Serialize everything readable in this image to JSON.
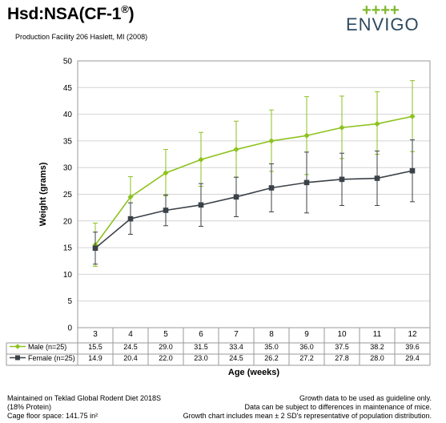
{
  "header": {
    "title_main": "Hsd:NSA(CF-1",
    "title_reg": "®",
    "title_end": ")",
    "subtitle": "Production Facility 206 Haslett, MI (2008)",
    "logo_plus": "++++",
    "logo_text": "ENVIGO"
  },
  "chart_data": {
    "type": "line",
    "title": "",
    "xlabel": "Age (weeks)",
    "ylabel": "Weight (grams)",
    "categories": [
      "3",
      "4",
      "5",
      "6",
      "7",
      "8",
      "9",
      "10",
      "11",
      "12"
    ],
    "ylim": [
      0,
      50
    ],
    "yticks": [
      0,
      5,
      10,
      15,
      20,
      25,
      30,
      35,
      40,
      45,
      50
    ],
    "grid": true,
    "legend": "table-below",
    "series": [
      {
        "name": "Male (n=25)",
        "color": "#8dc21f",
        "marker": "diamond",
        "values": [
          15.5,
          24.5,
          29.0,
          31.5,
          33.4,
          35.0,
          36.0,
          37.5,
          38.2,
          39.6
        ],
        "labels": [
          "15.5",
          "24.5",
          "29.0",
          "31.5",
          "33.4",
          "35.0",
          "36.0",
          "37.5",
          "38.2",
          "39.6"
        ],
        "err_low": [
          11.5,
          20.7,
          24.7,
          26.5,
          28.2,
          29.3,
          28.7,
          31.7,
          32.5,
          33.0
        ],
        "err_high": [
          19.6,
          28.3,
          33.4,
          36.6,
          38.7,
          40.8,
          43.3,
          43.4,
          44.2,
          46.3
        ]
      },
      {
        "name": "Female (n=25)",
        "color": "#3b4148",
        "marker": "square",
        "values": [
          14.9,
          20.4,
          22.0,
          23.0,
          24.5,
          26.2,
          27.2,
          27.8,
          28.0,
          29.4
        ],
        "labels": [
          "14.9",
          "20.4",
          "22.0",
          "23.0",
          "24.5",
          "26.2",
          "27.2",
          "27.8",
          "28.0",
          "29.4"
        ],
        "err_low": [
          11.9,
          17.5,
          19.1,
          19.0,
          20.8,
          21.7,
          21.5,
          22.9,
          22.9,
          23.6
        ],
        "err_high": [
          17.9,
          23.4,
          24.9,
          27.0,
          28.2,
          30.7,
          32.9,
          32.7,
          33.1,
          35.2
        ]
      }
    ]
  },
  "footer": {
    "left": [
      "Maintained on Teklad Global Rodent Diet 2018S",
      "(18% Protein)",
      "Cage floor space: 141.75 in²"
    ],
    "right": [
      "Growth data to be used as guideline only.",
      "Data can be subject to differences in maintenance of mice.",
      "Growth chart includes mean ± 2 SD's representative of population distribution."
    ]
  }
}
